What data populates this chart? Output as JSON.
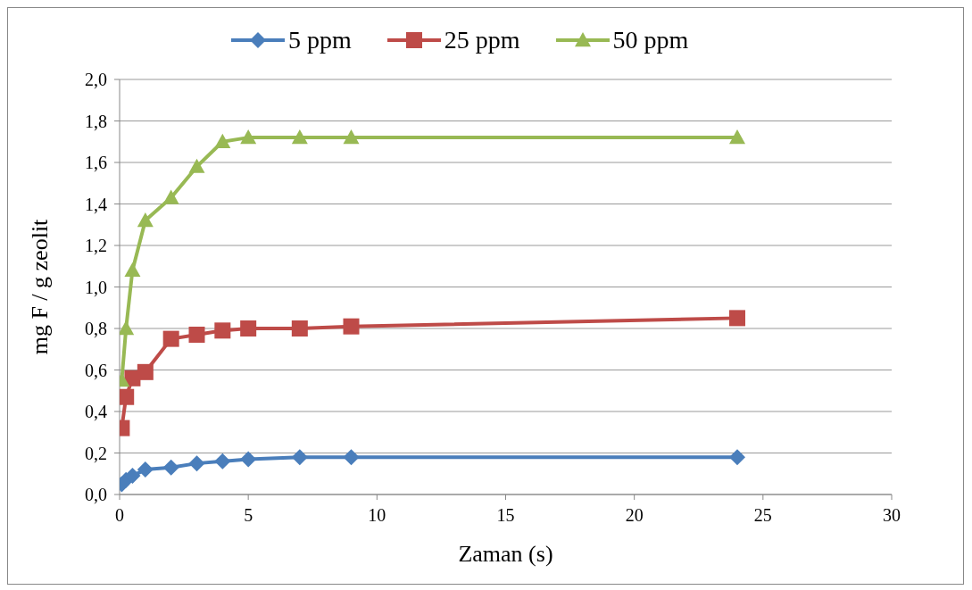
{
  "chart_data": {
    "type": "line",
    "xlabel": "Zaman (s)",
    "ylabel": "mg F / g zeolit",
    "x": [
      0.083,
      0.25,
      0.5,
      1,
      2,
      3,
      4,
      5,
      7,
      9,
      24
    ],
    "series": [
      {
        "name": "5 ppm",
        "color": "#4a7ebb",
        "marker": "diamond",
        "values": [
          0.05,
          0.07,
          0.09,
          0.12,
          0.13,
          0.15,
          0.16,
          0.17,
          0.18,
          0.18,
          0.18
        ]
      },
      {
        "name": "25 ppm",
        "color": "#be4b48",
        "marker": "square",
        "values": [
          0.32,
          0.47,
          0.56,
          0.59,
          0.75,
          0.77,
          0.79,
          0.8,
          0.8,
          0.81,
          0.85
        ]
      },
      {
        "name": "50 ppm",
        "color": "#98b954",
        "marker": "triangle",
        "values": [
          0.55,
          0.8,
          1.08,
          1.32,
          1.43,
          1.58,
          1.7,
          1.72,
          1.72,
          1.72,
          1.72
        ]
      }
    ],
    "xlim": [
      0,
      30
    ],
    "xticks": [
      0,
      5,
      10,
      15,
      20,
      25,
      30
    ],
    "ylim": [
      0,
      2
    ],
    "yticks": [
      {
        "value": 0,
        "label": "0,0"
      },
      {
        "value": 0.2,
        "label": "0,2"
      },
      {
        "value": 0.4,
        "label": "0,4"
      },
      {
        "value": 0.6,
        "label": "0,6"
      },
      {
        "value": 0.8,
        "label": "0,8"
      },
      {
        "value": 1,
        "label": "1,0"
      },
      {
        "value": 1.2,
        "label": "1,2"
      },
      {
        "value": 1.4,
        "label": "1,4"
      },
      {
        "value": 1.6,
        "label": "1,6"
      },
      {
        "value": 1.8,
        "label": "1,8"
      },
      {
        "value": 2,
        "label": "2,0"
      }
    ],
    "grid": "y",
    "legend": "top",
    "line_style": "solid"
  }
}
